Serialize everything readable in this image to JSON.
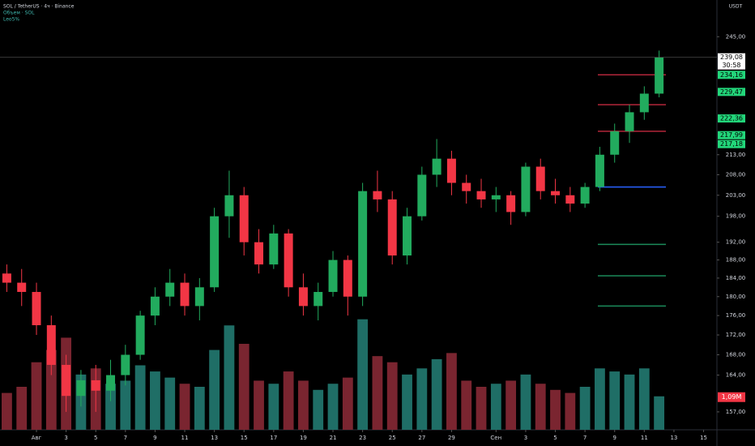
{
  "chart_data": {
    "type": "candlestick",
    "title": "SOL / TetherUS · 4ч · Binance",
    "subtitle": "Объем · SOL",
    "indicator": "Leo5%",
    "currency": "USDT",
    "countdown": "30:58",
    "log_scale": true,
    "ylim": [
      153.7,
      255.9
    ],
    "xlim": [
      -2.46,
      45.9
    ],
    "yticks": [
      {
        "value": 245,
        "label": "245,00"
      },
      {
        "value": 213,
        "label": "213,00"
      },
      {
        "value": 208,
        "label": "208,00"
      },
      {
        "value": 203,
        "label": "203,00"
      },
      {
        "value": 198,
        "label": "198,00"
      },
      {
        "value": 192,
        "label": "192,00"
      },
      {
        "value": 188,
        "label": "188,00"
      },
      {
        "value": 184,
        "label": "184,00"
      },
      {
        "value": 180,
        "label": "180,00"
      },
      {
        "value": 176,
        "label": "176,00"
      },
      {
        "value": 172,
        "label": "172,00"
      },
      {
        "value": 168,
        "label": "168,00"
      },
      {
        "value": 164,
        "label": "164,00"
      },
      {
        "value": 157,
        "label": "157,00"
      }
    ],
    "xticks": [
      {
        "value": 0,
        "label": "Авг"
      },
      {
        "value": 2,
        "label": "3"
      },
      {
        "value": 4,
        "label": "5"
      },
      {
        "value": 6,
        "label": "7"
      },
      {
        "value": 8,
        "label": "9"
      },
      {
        "value": 10,
        "label": "11"
      },
      {
        "value": 12,
        "label": "13"
      },
      {
        "value": 14,
        "label": "15"
      },
      {
        "value": 16,
        "label": "17"
      },
      {
        "value": 18,
        "label": "19"
      },
      {
        "value": 20,
        "label": "21"
      },
      {
        "value": 22,
        "label": "23"
      },
      {
        "value": 24,
        "label": "25"
      },
      {
        "value": 26,
        "label": "27"
      },
      {
        "value": 28,
        "label": "29"
      },
      {
        "value": 31,
        "label": "Сен"
      },
      {
        "value": 33,
        "label": "3"
      },
      {
        "value": 35,
        "label": "5"
      },
      {
        "value": 37,
        "label": "7"
      },
      {
        "value": 39,
        "label": "9"
      },
      {
        "value": 41,
        "label": "11"
      },
      {
        "value": 43,
        "label": "13"
      },
      {
        "value": 45,
        "label": "15"
      }
    ],
    "up_color": "#22ab5e",
    "down_color": "#f23645",
    "x": [
      -2,
      -1,
      0,
      1,
      2,
      3,
      4,
      5,
      6,
      7,
      8,
      9,
      10,
      11,
      12,
      13,
      14,
      15,
      16,
      17,
      18,
      19,
      20,
      21,
      22,
      23,
      24,
      25,
      26,
      27,
      28,
      29,
      30,
      31,
      32,
      33,
      34,
      35,
      36,
      37,
      38,
      39,
      40,
      41,
      42
    ],
    "candles": [
      [
        185,
        187,
        181,
        183
      ],
      [
        183,
        186,
        178,
        181
      ],
      [
        181,
        183,
        172,
        174
      ],
      [
        174,
        176,
        164,
        166
      ],
      [
        166,
        168,
        157,
        160
      ],
      [
        160,
        165,
        158,
        163
      ],
      [
        163,
        166,
        157,
        161
      ],
      [
        161,
        167,
        159,
        164
      ],
      [
        164,
        170,
        162,
        168
      ],
      [
        168,
        177,
        167,
        176
      ],
      [
        176,
        182,
        174,
        180
      ],
      [
        180,
        186,
        178,
        183
      ],
      [
        183,
        185,
        176,
        178
      ],
      [
        178,
        184,
        175,
        182
      ],
      [
        182,
        200,
        181,
        198
      ],
      [
        198,
        209,
        193,
        203
      ],
      [
        203,
        205,
        189,
        192
      ],
      [
        192,
        195,
        185,
        187
      ],
      [
        187,
        196,
        186,
        194
      ],
      [
        194,
        195,
        180,
        182
      ],
      [
        182,
        185,
        176,
        178
      ],
      [
        178,
        183,
        175,
        181
      ],
      [
        181,
        190,
        180,
        188
      ],
      [
        188,
        189,
        176,
        180
      ],
      [
        180,
        206,
        178,
        204
      ],
      [
        204,
        209,
        199,
        202
      ],
      [
        202,
        204,
        187,
        189
      ],
      [
        189,
        200,
        187,
        198
      ],
      [
        198,
        210,
        197,
        208
      ],
      [
        208,
        217,
        205,
        212
      ],
      [
        212,
        214,
        203,
        206
      ],
      [
        206,
        208,
        201,
        204
      ],
      [
        204,
        207,
        200,
        202
      ],
      [
        202,
        205,
        199,
        203
      ],
      [
        203,
        204,
        196,
        199
      ],
      [
        199,
        211,
        198,
        210
      ],
      [
        210,
        212,
        202,
        204
      ],
      [
        204,
        207,
        201,
        203
      ],
      [
        203,
        205,
        199,
        201
      ],
      [
        201,
        206,
        200,
        205
      ],
      [
        205,
        215,
        204,
        213
      ],
      [
        213,
        221,
        211,
        219
      ],
      [
        219,
        226,
        216,
        224
      ],
      [
        224,
        231,
        222,
        229
      ],
      [
        229,
        241,
        228,
        239.08
      ]
    ],
    "volumes": [
      1.2,
      1.4,
      2.2,
      2.6,
      3.0,
      1.8,
      2.0,
      1.5,
      1.6,
      2.1,
      1.9,
      1.7,
      1.5,
      1.4,
      2.6,
      3.4,
      2.8,
      1.6,
      1.5,
      1.9,
      1.6,
      1.3,
      1.5,
      1.7,
      3.6,
      2.4,
      2.2,
      1.8,
      2.0,
      2.3,
      2.5,
      1.6,
      1.4,
      1.5,
      1.6,
      1.8,
      1.5,
      1.3,
      1.2,
      1.4,
      2.0,
      1.9,
      1.8,
      2.0,
      1.09
    ],
    "volume_ylim": [
      0,
      14
    ],
    "volume_last_label": "1,09M",
    "price_labels": [
      {
        "value": 239.08,
        "label": "239,08",
        "color": "#ffffff"
      },
      {
        "value": 234.16,
        "label": "234,16",
        "color": "#22d67a"
      },
      {
        "value": 229.47,
        "label": "229,47",
        "color": "#22d67a"
      },
      {
        "value": 222.36,
        "label": "222,36",
        "color": "#22d67a"
      },
      {
        "value": 217.99,
        "label": "217,99",
        "color": "#22d67a"
      },
      {
        "value": 217.18,
        "label": "217,18",
        "color": "#22d67a"
      }
    ],
    "levels": [
      {
        "value": 234.16,
        "color": "#b2263a"
      },
      {
        "value": 226,
        "color": "#b2263a"
      },
      {
        "value": 219,
        "color": "#b2263a"
      },
      {
        "value": 205,
        "color": "#2962ff"
      },
      {
        "value": 191.5,
        "color": "#1b8a5a"
      },
      {
        "value": 184.5,
        "color": "#1b8a5a"
      },
      {
        "value": 178,
        "color": "#1b8a5a"
      }
    ]
  }
}
